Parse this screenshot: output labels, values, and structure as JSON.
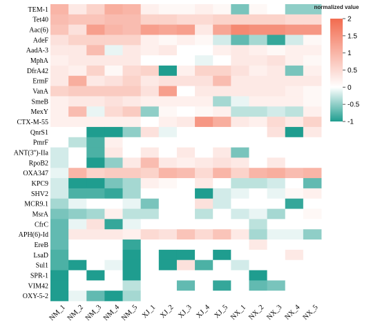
{
  "chart_data": {
    "type": "heatmap",
    "title": "",
    "xlabel": "",
    "ylabel": "",
    "columns": [
      "NM_1",
      "NM_2",
      "NM_3",
      "NM_4",
      "NM_5",
      "XJ_1",
      "XJ_2",
      "XJ_3",
      "XJ_4",
      "XJ_5",
      "NX_1",
      "NX_2",
      "NX_3",
      "NX_4",
      "NX_5"
    ],
    "rows": [
      "TEM-1",
      "Tet40",
      "Aac(6)",
      "AdeF",
      "AadA-3",
      "MphA",
      "DfrA42",
      "ErmF",
      "VanA",
      "SmeB",
      "MexY",
      "CTX-M-55",
      "QnrS1",
      "PmrF",
      "ANT(3'')-IIa",
      "RpoB2",
      "OXA347",
      "KPC9",
      "SHV2",
      "MCR9.1",
      "MsrA",
      "CfrC",
      "APH(6)-Id",
      "EreB",
      "LsaD",
      "Sul1",
      "SPR-1",
      "VIM42",
      "OXY-5-2"
    ],
    "values": [
      [
        1.0,
        0.3,
        0.6,
        1.1,
        1.0,
        0.2,
        0.1,
        0.1,
        0.2,
        0.1,
        -0.6,
        0.1,
        0.0,
        -0.5,
        -0.5
      ],
      [
        0.9,
        0.8,
        0.8,
        0.9,
        0.9,
        0.6,
        0.6,
        0.5,
        0.5,
        0.6,
        0.6,
        0.6,
        0.6,
        0.5,
        0.5
      ],
      [
        0.8,
        0.4,
        1.3,
        1.0,
        0.9,
        1.3,
        1.2,
        1.3,
        0.3,
        1.2,
        1.6,
        1.5,
        1.5,
        1.4,
        1.4
      ],
      [
        0.4,
        0.6,
        0.6,
        0.6,
        0.6,
        0.2,
        0.1,
        0.2,
        0.1,
        -0.2,
        -0.7,
        -0.4,
        -0.9,
        -0.2,
        0.1
      ],
      [
        0.3,
        0.3,
        0.9,
        -0.1,
        0.3,
        0.2,
        0.3,
        0.0,
        0.0,
        0.2,
        0.3,
        0.2,
        0.1,
        0.2,
        0.2
      ],
      [
        0.2,
        0.3,
        0.3,
        0.3,
        0.3,
        0.0,
        0.0,
        0.0,
        -0.1,
        0.0,
        0.3,
        0.3,
        0.4,
        0.2,
        0.1
      ],
      [
        0.3,
        0.2,
        0.6,
        0.1,
        0.5,
        0.6,
        -1.1,
        0.2,
        0.6,
        0.6,
        0.4,
        0.2,
        0.3,
        -0.6,
        0.2
      ],
      [
        0.3,
        1.1,
        0.3,
        0.4,
        0.6,
        0.3,
        0.4,
        0.4,
        0.4,
        0.9,
        0.3,
        0.3,
        0.3,
        0.3,
        0.3
      ],
      [
        0.6,
        0.7,
        0.7,
        0.7,
        0.7,
        0.4,
        1.3,
        0.0,
        0.3,
        0.3,
        0.3,
        0.3,
        0.3,
        0.2,
        0.1
      ],
      [
        0.2,
        0.3,
        0.3,
        0.4,
        0.3,
        0.2,
        0.2,
        0.2,
        0.2,
        -0.4,
        -0.1,
        0.2,
        0.2,
        0.2,
        0.1
      ],
      [
        0.2,
        0.9,
        -0.1,
        0.5,
        0.7,
        -0.5,
        0.1,
        0.0,
        0.1,
        0.2,
        -0.3,
        -0.3,
        -0.2,
        -0.3,
        0.2
      ],
      [
        0.2,
        0.2,
        0.2,
        0.2,
        0.2,
        0.0,
        0.2,
        0.3,
        1.4,
        1.1,
        0.3,
        0.2,
        0.5,
        0.3,
        0.6
      ],
      [
        0.0,
        0.0,
        -1.3,
        -1.0,
        -0.5,
        0.4,
        -0.1,
        0.0,
        0.0,
        0.0,
        0.0,
        0.0,
        0.4,
        -1.3,
        0.3
      ],
      [
        0.0,
        -0.3,
        -0.8,
        0.2,
        0.0,
        0.0,
        0.0,
        0.0,
        0.0,
        0.0,
        0.0,
        0.0,
        0.0,
        0.0,
        0.0
      ],
      [
        -0.2,
        0.0,
        -0.8,
        0.3,
        0.0,
        0.3,
        0.0,
        0.3,
        0.0,
        0.3,
        -0.6,
        0.0,
        0.0,
        0.0,
        0.0
      ],
      [
        -0.2,
        0.0,
        -1.3,
        -0.5,
        0.3,
        0.9,
        0.3,
        0.2,
        0.3,
        0.4,
        0.3,
        0.0,
        0.3,
        0.0,
        0.0
      ],
      [
        -0.1,
        1.0,
        0.6,
        0.7,
        0.7,
        0.6,
        1.0,
        0.9,
        0.5,
        1.0,
        0.6,
        1.0,
        1.1,
        0.9,
        1.0
      ],
      [
        -0.2,
        -1.5,
        -1.5,
        -0.6,
        -0.4,
        0.2,
        0.1,
        0.0,
        0.3,
        0.0,
        -0.3,
        -0.3,
        -0.2,
        0.0,
        -0.7
      ],
      [
        -0.2,
        -0.8,
        -0.8,
        -0.9,
        -0.4,
        0.0,
        0.0,
        0.0,
        -1.3,
        -0.2,
        -0.1,
        0.0,
        -0.1,
        0.1,
        0.2
      ],
      [
        -0.4,
        -0.1,
        0.0,
        0.0,
        -0.1,
        -0.6,
        0.0,
        0.0,
        0.4,
        -0.2,
        0.0,
        0.0,
        0.0,
        -0.9,
        0.0
      ],
      [
        -0.6,
        -0.5,
        -0.4,
        0.2,
        -0.3,
        -0.3,
        0.0,
        0.0,
        -0.3,
        0.0,
        -0.2,
        -0.1,
        -0.4,
        0.0,
        0.1
      ],
      [
        -0.7,
        -0.1,
        0.4,
        -0.9,
        -0.1,
        0.0,
        0.0,
        0.0,
        0.0,
        0.0,
        0.0,
        -0.3,
        0.0,
        0.0,
        0.0
      ],
      [
        -0.7,
        0.3,
        0.3,
        0.3,
        0.2,
        0.5,
        0.4,
        0.8,
        0.5,
        0.8,
        0.3,
        -0.4,
        -0.1,
        -0.1,
        -0.5
      ],
      [
        -0.7,
        0.0,
        0.0,
        0.0,
        -0.9,
        0.0,
        0.0,
        0.0,
        0.0,
        0.0,
        0.0,
        0.3,
        0.0,
        0.0,
        0.0
      ],
      [
        -0.8,
        0.0,
        0.0,
        0.0,
        -1.5,
        0.0,
        -1.1,
        -1.2,
        0.0,
        -1.5,
        0.0,
        0.0,
        0.0,
        0.3,
        0.0
      ],
      [
        -0.8,
        -1.4,
        0.0,
        -0.1,
        -1.5,
        0.0,
        -1.5,
        0.4,
        -0.8,
        0.0,
        -0.2,
        0.0,
        0.0,
        0.0,
        0.0
      ],
      [
        -1.3,
        0.0,
        -1.1,
        0.0,
        -1.1,
        0.0,
        0.0,
        0.0,
        0.0,
        0.0,
        0.0,
        -1.4,
        0.0,
        0.0,
        0.0
      ],
      [
        -1.3,
        0.0,
        0.0,
        0.0,
        -0.3,
        0.0,
        0.0,
        -0.7,
        0.0,
        -0.9,
        0.0,
        -0.7,
        -0.6,
        0.0,
        0.0
      ],
      [
        -1.3,
        -0.1,
        -0.7,
        -1.0,
        -0.4,
        0.0,
        0.0,
        0.0,
        0.0,
        0.0,
        0.0,
        0.0,
        0.0,
        0.0,
        0.0
      ]
    ],
    "scale": {
      "min": -1,
      "max": 2,
      "low_color": "#1f9d8f",
      "mid_color": "#ffffff",
      "high_color": "#f26b4f"
    },
    "legend": {
      "title": "normalized value",
      "ticks": [
        {
          "value": 2,
          "label": "2"
        },
        {
          "value": 1.5,
          "label": "1.5"
        },
        {
          "value": 1,
          "label": "1"
        },
        {
          "value": 0.5,
          "label": "0.5"
        },
        {
          "value": 0,
          "label": "0"
        },
        {
          "value": -0.5,
          "label": "-0.5"
        },
        {
          "value": -1,
          "label": "-1"
        }
      ],
      "placement": "top-right"
    }
  }
}
